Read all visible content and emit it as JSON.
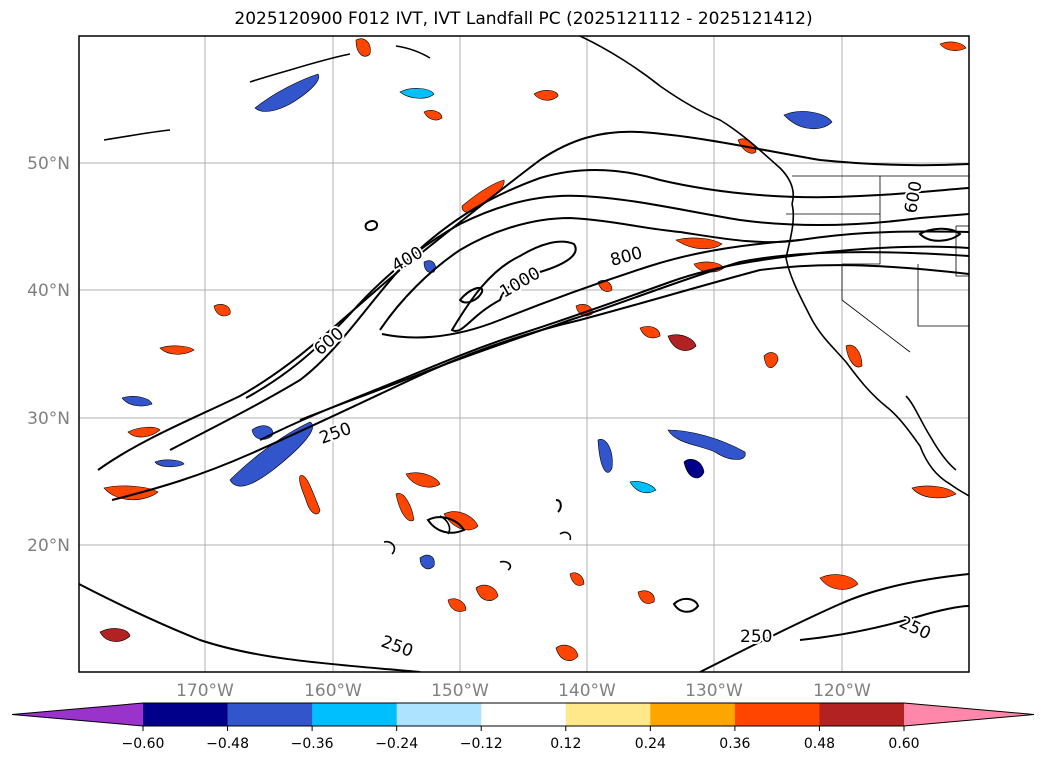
{
  "title": "2025120900 F012 IVT, IVT Landfall PC (2025121112 - 2025121412)",
  "lat_labels": [
    "50°N",
    "40°N",
    "30°N",
    "20°N"
  ],
  "lon_labels": [
    "170°W",
    "160°W",
    "150°W",
    "140°W",
    "130°W",
    "120°W"
  ],
  "ivt_contour_labels": [
    "400",
    "600",
    "1000",
    "800",
    "600",
    "250",
    "250",
    "250",
    "250"
  ],
  "colorbar": {
    "ticks": [
      "−0.60",
      "−0.48",
      "−0.36",
      "−0.24",
      "−0.12",
      "0.12",
      "0.24",
      "0.36",
      "0.48",
      "0.60"
    ],
    "colors": [
      "#9933cc",
      "#00008b",
      "#3355cc",
      "#00bfff",
      "#aee3ff",
      "#ffffff",
      "#ffe88a",
      "#ffa500",
      "#ff4500",
      "#b22222",
      "#ff88aa"
    ]
  },
  "colors": {
    "axis": "#000000",
    "grid": "#b0b0b0",
    "label": "#808080",
    "contour": "#000000"
  }
}
